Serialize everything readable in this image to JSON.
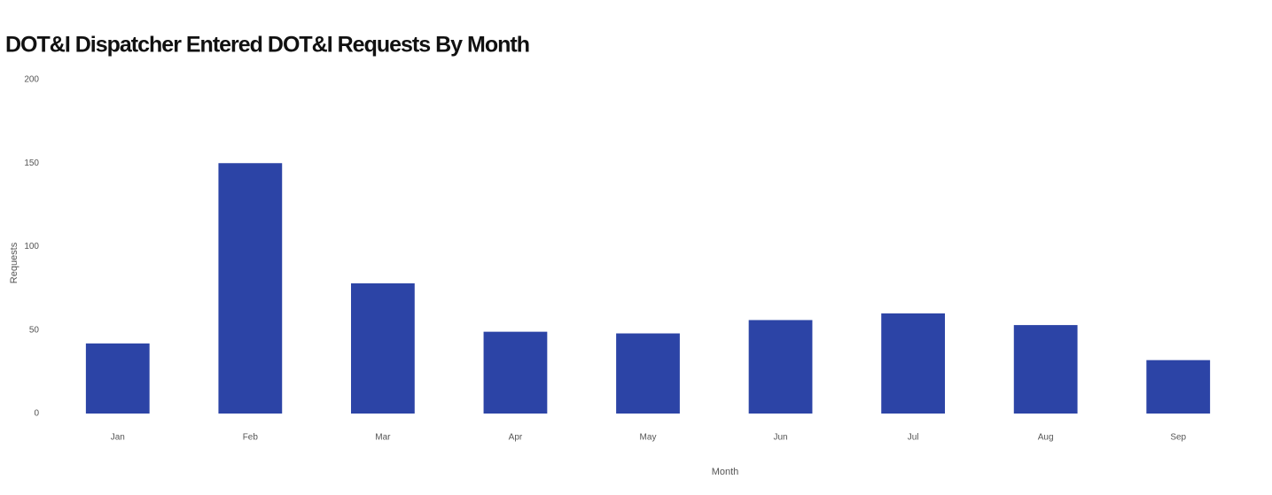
{
  "chart_data": {
    "type": "bar",
    "title": "DOT&I Dispatcher Entered DOT&I Requests By Month",
    "x_label": "Month",
    "y_label": "Requests",
    "categories": [
      "Jan",
      "Feb",
      "Mar",
      "Apr",
      "May",
      "Jun",
      "Jul",
      "Aug",
      "Sep"
    ],
    "values": [
      42,
      150,
      78,
      49,
      48,
      56,
      60,
      53,
      32
    ],
    "color": "#2c44a6",
    "ylim": [
      0,
      200
    ],
    "yticks": [
      0,
      50,
      100,
      150,
      200
    ],
    "grid": false
  }
}
